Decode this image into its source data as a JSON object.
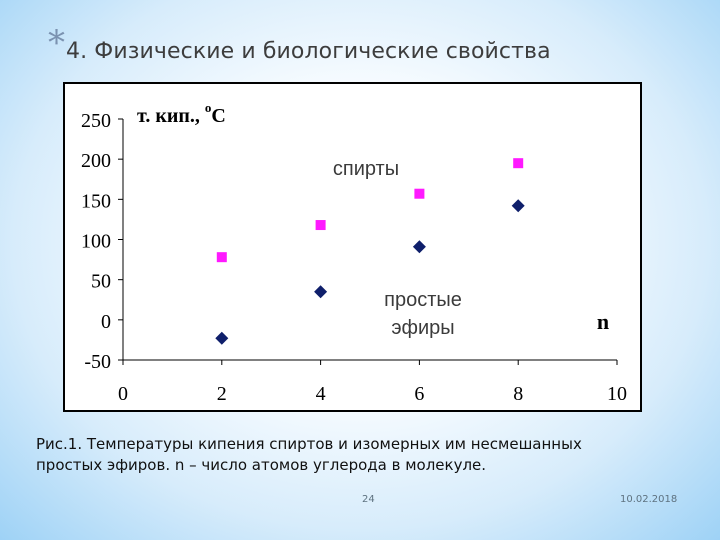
{
  "title": {
    "bullet": "*",
    "text": "4. Физические и биологические свойства"
  },
  "chart_data": {
    "type": "scatter",
    "grid": false,
    "xlim": [
      0,
      10
    ],
    "ylim": [
      -50,
      250
    ],
    "x_ticks": [
      0,
      2,
      4,
      6,
      8,
      10
    ],
    "y_ticks": [
      250,
      200,
      150,
      100,
      50,
      0,
      -50
    ],
    "ylabel": "т. кип., °C",
    "xlabel": "n",
    "series": [
      {
        "name": "спирты",
        "marker": "square",
        "color": "#ff19ff",
        "points": [
          {
            "x": 2,
            "y": 78
          },
          {
            "x": 4,
            "y": 118
          },
          {
            "x": 6,
            "y": 157
          },
          {
            "x": 8,
            "y": 195
          }
        ]
      },
      {
        "name": "простые эфиры",
        "marker": "diamond",
        "color": "#0f1f6b",
        "points": [
          {
            "x": 2,
            "y": -23
          },
          {
            "x": 4,
            "y": 35
          },
          {
            "x": 6,
            "y": 91
          },
          {
            "x": 8,
            "y": 142
          }
        ]
      }
    ],
    "annotations": {
      "ylabel_prefix": "т. кип., ",
      "ylabel_degree": "o",
      "ylabel_unit": "C",
      "series_alcohol": "спирты",
      "series_ether_line1": "простые",
      "series_ether_line2": "эфиры",
      "xlabel": "n"
    }
  },
  "caption": {
    "line1": "Рис.1. Температуры кипения спиртов и изомерных им несмешанных",
    "line2": "простых эфиров. n – число атомов углерода в молекуле."
  },
  "footer": {
    "page": "24",
    "date": "10.02.2018"
  }
}
